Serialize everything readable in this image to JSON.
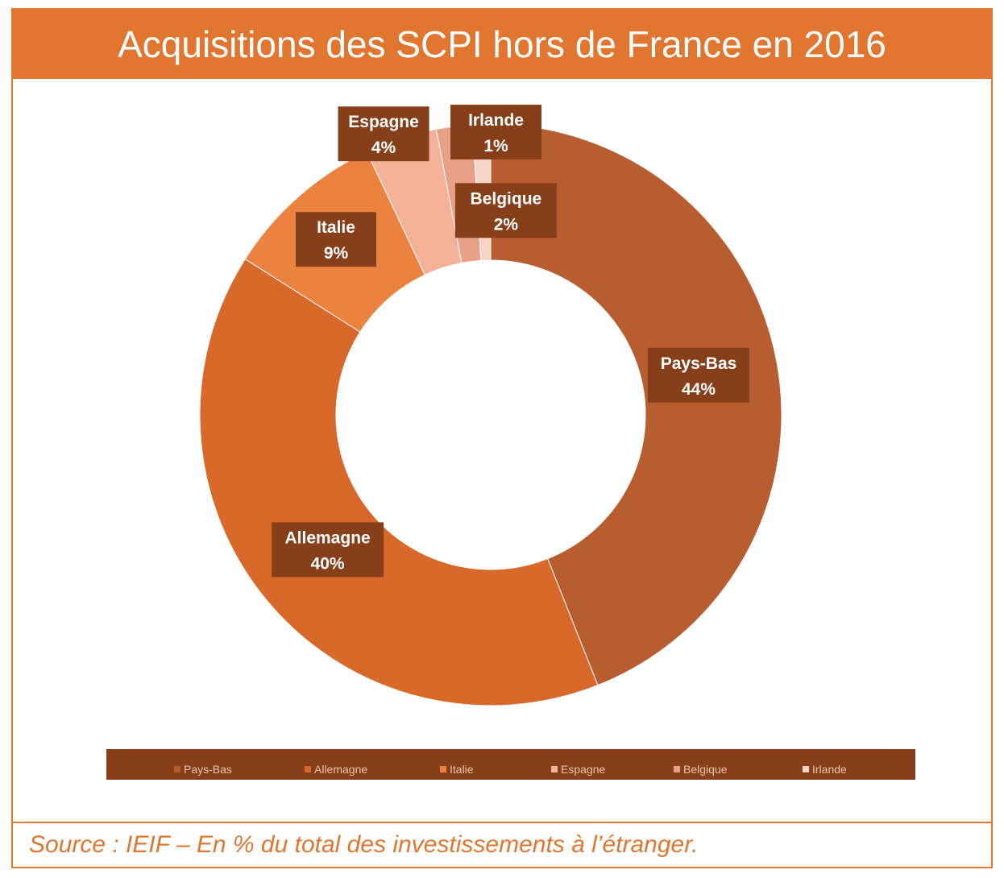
{
  "title": "Acquisitions des SCPI hors de France en 2016",
  "source": "Source : IEIF – En % du total des investissements à l’étranger.",
  "colors": {
    "accent": "#e0762f",
    "label_box": "#863f19",
    "legend_bg": "#863f19"
  },
  "chart_data": {
    "type": "pie",
    "variant": "donut",
    "title": "Acquisitions des SCPI hors de France en 2016",
    "categories": [
      "Pays-Bas",
      "Allemagne",
      "Italie",
      "Espagne",
      "Belgique",
      "Irlande"
    ],
    "values": [
      44,
      40,
      9,
      4,
      2,
      1
    ],
    "value_labels": [
      "44%",
      "40%",
      "9%",
      "4%",
      "2%",
      "1%"
    ],
    "colors": [
      "#b85d2f",
      "#d8692a",
      "#ec8240",
      "#f3b198",
      "#e9a088",
      "#f5d4c5"
    ],
    "legend": "bottom"
  }
}
